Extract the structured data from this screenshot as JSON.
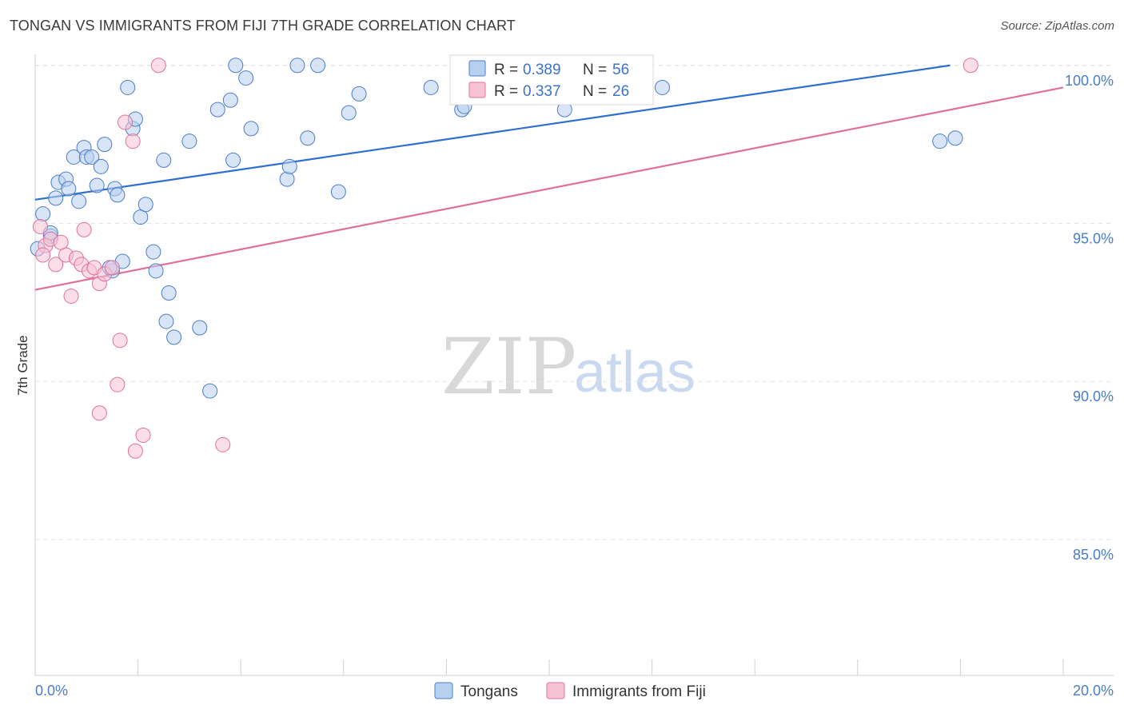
{
  "title": "TONGAN VS IMMIGRANTS FROM FIJI 7TH GRADE CORRELATION CHART",
  "source": "Source: ZipAtlas.com",
  "watermark": {
    "zip": "ZIP",
    "atlas": "atlas"
  },
  "colors": {
    "blue": "#4a7cc8",
    "blue_fill": "#b8d0f0",
    "blue_line": "#2f6fd0",
    "pink": "#e0709a",
    "pink_fill": "#f7c3d4",
    "pink_line": "#e0709a"
  },
  "legend": {
    "r_label": "R = ",
    "n_label": "N = ",
    "series": [
      {
        "r": "0.389",
        "n": "56"
      },
      {
        "r": "0.337",
        "n": "26"
      }
    ]
  },
  "chart_data": {
    "type": "scatter",
    "title": "TONGAN VS IMMIGRANTS FROM FIJI 7TH GRADE CORRELATION CHART",
    "xlabel": "",
    "ylabel": "7th Grade",
    "xlim": [
      0,
      20
    ],
    "ylim": [
      80.7,
      100.5
    ],
    "x_tick_labels": [
      "0.0%",
      "20.0%"
    ],
    "y_ticks": [
      85,
      90,
      95,
      100
    ],
    "y_tick_labels": [
      "85.0%",
      "90.0%",
      "95.0%",
      "100.0%"
    ],
    "series": [
      {
        "name": "Tongans",
        "color": "#4a7cc8",
        "trend": {
          "x": [
            0,
            17.8
          ],
          "y": [
            95.75,
            100.0
          ]
        },
        "points": [
          [
            0.05,
            94.2
          ],
          [
            0.15,
            95.3
          ],
          [
            0.3,
            94.6
          ],
          [
            0.4,
            95.8
          ],
          [
            0.45,
            96.3
          ],
          [
            0.6,
            96.4
          ],
          [
            0.65,
            96.1
          ],
          [
            0.75,
            97.1
          ],
          [
            0.85,
            95.7
          ],
          [
            0.95,
            97.4
          ],
          [
            1.0,
            97.1
          ],
          [
            1.1,
            97.1
          ],
          [
            1.2,
            96.2
          ],
          [
            1.28,
            96.8
          ],
          [
            1.35,
            97.5
          ],
          [
            1.5,
            93.5
          ],
          [
            1.55,
            96.1
          ],
          [
            1.6,
            95.9
          ],
          [
            1.7,
            93.8
          ],
          [
            1.8,
            99.3
          ],
          [
            1.9,
            98.0
          ],
          [
            1.95,
            98.3
          ],
          [
            2.05,
            95.2
          ],
          [
            2.15,
            95.6
          ],
          [
            2.3,
            94.1
          ],
          [
            2.35,
            93.5
          ],
          [
            2.5,
            97.0
          ],
          [
            2.55,
            91.9
          ],
          [
            2.6,
            92.8
          ],
          [
            2.7,
            91.4
          ],
          [
            3.0,
            97.6
          ],
          [
            3.2,
            91.7
          ],
          [
            3.4,
            89.7
          ],
          [
            3.55,
            98.6
          ],
          [
            3.8,
            98.9
          ],
          [
            3.85,
            97.0
          ],
          [
            3.9,
            100.0
          ],
          [
            4.1,
            99.6
          ],
          [
            4.2,
            98.0
          ],
          [
            4.9,
            96.4
          ],
          [
            4.95,
            96.8
          ],
          [
            5.1,
            100.0
          ],
          [
            5.3,
            97.7
          ],
          [
            5.5,
            100.0
          ],
          [
            5.9,
            96.0
          ],
          [
            6.1,
            98.5
          ],
          [
            6.3,
            99.1
          ],
          [
            7.7,
            99.3
          ],
          [
            8.3,
            98.6
          ],
          [
            8.35,
            98.7
          ],
          [
            10.3,
            98.6
          ],
          [
            12.2,
            99.3
          ],
          [
            17.6,
            97.6
          ],
          [
            17.9,
            97.7
          ],
          [
            0.3,
            94.7
          ],
          [
            1.45,
            93.6
          ]
        ]
      },
      {
        "name": "Immigrants from Fiji",
        "color": "#e0709a",
        "trend": {
          "x": [
            0,
            20
          ],
          "y": [
            92.9,
            99.3
          ]
        },
        "points": [
          [
            0.1,
            94.9
          ],
          [
            0.2,
            94.3
          ],
          [
            0.3,
            94.5
          ],
          [
            0.4,
            93.7
          ],
          [
            0.5,
            94.4
          ],
          [
            0.6,
            94.0
          ],
          [
            0.7,
            92.7
          ],
          [
            0.8,
            93.9
          ],
          [
            0.9,
            93.7
          ],
          [
            0.95,
            94.8
          ],
          [
            1.05,
            93.5
          ],
          [
            1.15,
            93.6
          ],
          [
            1.25,
            93.1
          ],
          [
            1.25,
            89.0
          ],
          [
            1.35,
            93.4
          ],
          [
            1.5,
            93.6
          ],
          [
            1.6,
            89.9
          ],
          [
            1.65,
            91.3
          ],
          [
            1.75,
            98.2
          ],
          [
            1.9,
            97.6
          ],
          [
            1.95,
            87.8
          ],
          [
            2.1,
            88.3
          ],
          [
            2.4,
            100.0
          ],
          [
            3.65,
            88.0
          ],
          [
            18.2,
            100.0
          ],
          [
            0.15,
            94.0
          ]
        ]
      }
    ]
  },
  "bottom_legend": [
    "Tongans",
    "Immigrants from Fiji"
  ]
}
